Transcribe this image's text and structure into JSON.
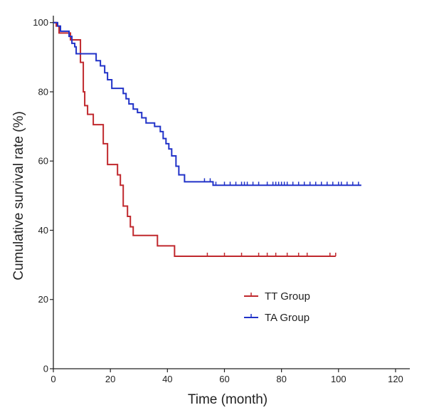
{
  "chart_data": {
    "type": "line",
    "title": "",
    "xlabel": "Time (month)",
    "ylabel": "Cumulative survival rate (%)",
    "xlim": [
      0,
      125
    ],
    "ylim": [
      0,
      102
    ],
    "x_ticks": [
      0,
      20,
      40,
      60,
      80,
      100,
      120
    ],
    "y_ticks": [
      0,
      20,
      40,
      60,
      80,
      100
    ],
    "grid": false,
    "legend_position": "lower-right",
    "series": [
      {
        "name": "TT Group",
        "color": "#c0282d",
        "steps": [
          [
            0,
            100
          ],
          [
            1,
            99
          ],
          [
            2,
            97
          ],
          [
            5,
            97
          ],
          [
            6,
            95
          ],
          [
            9,
            95
          ],
          [
            9.5,
            88.5
          ],
          [
            10.5,
            80
          ],
          [
            11,
            76
          ],
          [
            12,
            73.5
          ],
          [
            14,
            70.5
          ],
          [
            17,
            70.5
          ],
          [
            17.5,
            65
          ],
          [
            19,
            59
          ],
          [
            21.5,
            59
          ],
          [
            22.5,
            56
          ],
          [
            23.5,
            53
          ],
          [
            24.5,
            47
          ],
          [
            26,
            44
          ],
          [
            27,
            41
          ],
          [
            28,
            38.5
          ],
          [
            36,
            38.5
          ],
          [
            36.5,
            35.5
          ],
          [
            42,
            35.5
          ],
          [
            42.5,
            32.5
          ],
          [
            99,
            32.5
          ]
        ],
        "censored": [
          54,
          60,
          66,
          72,
          75,
          78,
          82,
          86,
          89,
          97,
          99
        ]
      },
      {
        "name": "TA Group",
        "color": "#2132c8",
        "steps": [
          [
            0,
            100
          ],
          [
            1.5,
            99
          ],
          [
            2.5,
            97.5
          ],
          [
            5.5,
            96
          ],
          [
            6.5,
            94
          ],
          [
            7.5,
            93
          ],
          [
            8,
            91
          ],
          [
            14,
            91
          ],
          [
            15,
            89
          ],
          [
            16.5,
            87.5
          ],
          [
            18,
            85.5
          ],
          [
            19,
            83.5
          ],
          [
            20.5,
            81
          ],
          [
            23.5,
            81
          ],
          [
            24.5,
            79.5
          ],
          [
            25.5,
            78
          ],
          [
            26.5,
            76.5
          ],
          [
            28,
            75
          ],
          [
            29.5,
            74
          ],
          [
            31,
            72.5
          ],
          [
            32.5,
            71
          ],
          [
            35.5,
            70
          ],
          [
            37.5,
            68.5
          ],
          [
            38.5,
            66.5
          ],
          [
            39.5,
            65
          ],
          [
            40.5,
            63.5
          ],
          [
            41.5,
            61.5
          ],
          [
            43,
            58.5
          ],
          [
            44,
            56
          ],
          [
            46,
            54
          ],
          [
            47,
            54
          ],
          [
            56,
            53
          ],
          [
            108,
            53
          ]
        ],
        "censored": [
          53,
          55,
          57,
          60,
          62,
          64,
          66,
          67,
          68,
          70,
          72,
          75,
          77,
          78,
          79,
          80,
          81,
          82,
          84,
          86,
          88,
          90,
          92,
          94,
          96,
          98,
          100,
          101,
          103,
          105,
          107
        ]
      }
    ]
  }
}
